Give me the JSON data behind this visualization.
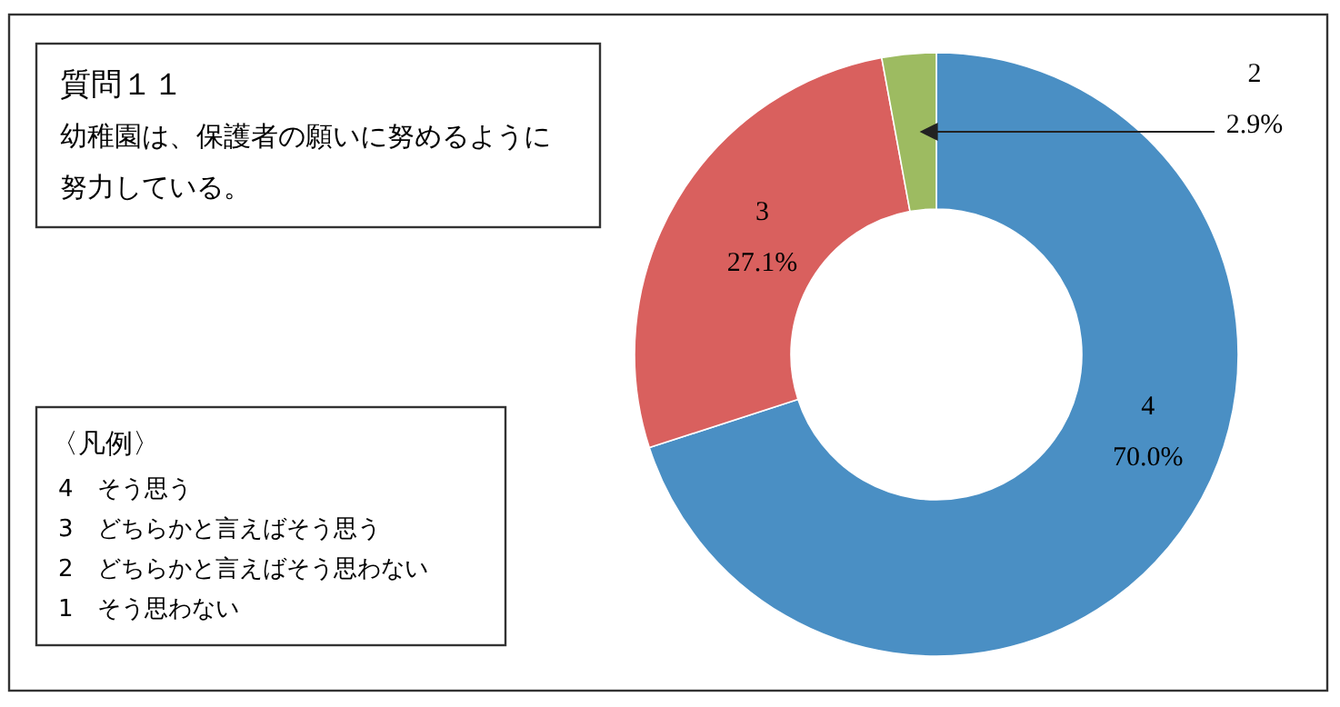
{
  "chart_data": {
    "type": "donut",
    "title": "質問１１",
    "subtitle": "幼稚園は、保護者の願いに努めるように努力している。",
    "categories": [
      "4",
      "3",
      "2"
    ],
    "values": [
      70.0,
      27.1,
      2.9
    ],
    "colors": [
      "#4a8fc4",
      "#d9605e",
      "#9dbb61"
    ],
    "value_labels": [
      "70.0%",
      "27.1%",
      "2.9%"
    ],
    "legend_title": "〈凡例〉",
    "annotations": [
      "4　そう思う",
      "3　どちらかと言えばそう思う",
      "2　どちらかと言えばそう思わない",
      "1　そう思わない"
    ]
  }
}
